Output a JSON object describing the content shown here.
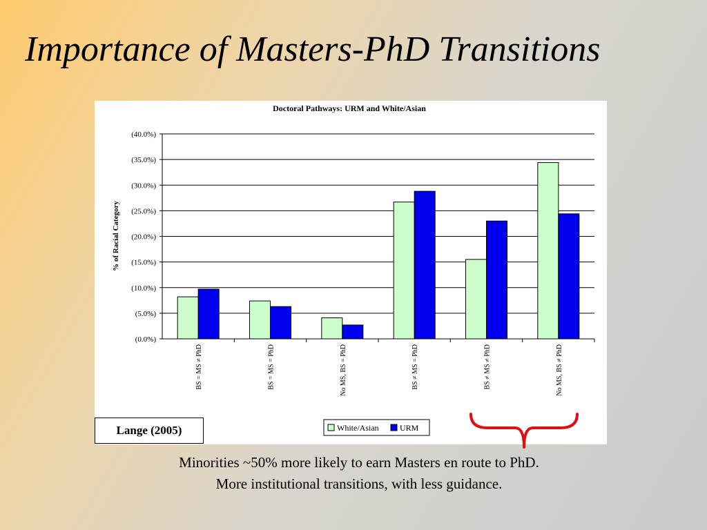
{
  "slide": {
    "title": "Importance of Masters-PhD Transitions",
    "citation": "Lange (2005)",
    "caption_line1": "Minorities ~50% more likely to earn Masters en route to PhD.",
    "caption_line2": "More institutional transitions, with less guidance."
  },
  "colors": {
    "white_asian": "#ccffcc",
    "urm": "#0000ee",
    "brace": "#e01010"
  },
  "chart_data": {
    "type": "bar",
    "title": "Doctoral Pathways: URM and White/Asian",
    "ylabel": "% of Racial Category",
    "xlabel": "",
    "ylim": [
      0,
      40
    ],
    "yticks": [
      "(0.0%)",
      "(5.0%)",
      "(10.0%)",
      "(15.0%)",
      "(20.0%)",
      "(25.0%)",
      "(30.0%)",
      "(35.0%)",
      "(40.0%)"
    ],
    "grid": true,
    "legend_position": "bottom-center",
    "categories": [
      "BS = MS ≠ PhD",
      "BS = MS = PhD",
      "No MS, BS = PhD",
      "BS ≠ MS = PhD",
      "BS ≠ MS ≠ PhD",
      "No MS, BS ≠ PhD"
    ],
    "series": [
      {
        "name": "White/Asian",
        "values": [
          8.2,
          7.4,
          4.1,
          26.7,
          15.5,
          34.4
        ]
      },
      {
        "name": "URM",
        "values": [
          9.7,
          6.3,
          2.7,
          28.8,
          23.0,
          24.4
        ]
      }
    ]
  }
}
